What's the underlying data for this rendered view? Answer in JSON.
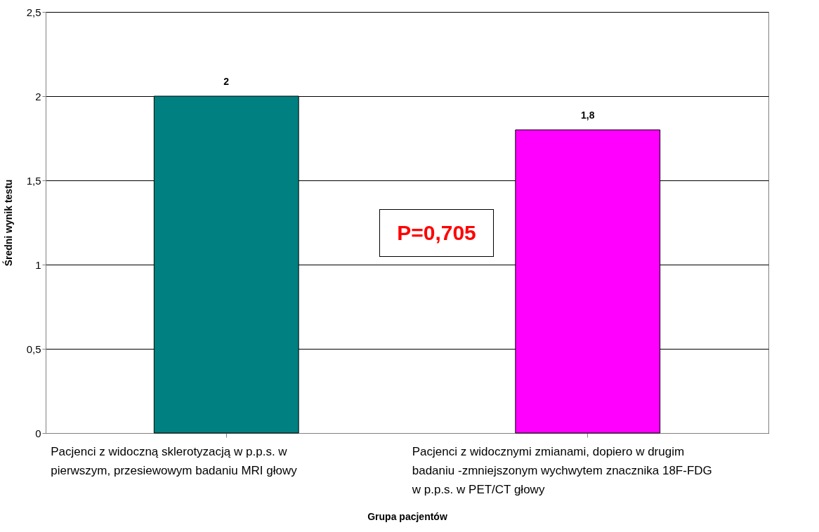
{
  "chart_data": {
    "type": "bar",
    "xlabel": "Grupa pacjentów",
    "ylabel": "Średni wynik testu",
    "categories": [
      "Pacjenci z widoczną sklerotyzacją w p.p.s. w\npierwszym, przesiewowym badaniu MRI głowy",
      "Pacjenci z widocznymi zmianami, dopiero w drugim\nbadaniu -zmniejszonym wychwytem znacznika 18F-FDG\nw p.p.s. w PET/CT głowy"
    ],
    "values": [
      2,
      1.8
    ],
    "colors": [
      "#008080",
      "#ff00ff"
    ],
    "ylim": [
      0,
      2.5
    ],
    "yticks": [
      0,
      {
        "value": 0.5,
        "label": "0,5"
      },
      1,
      {
        "value": 1.5,
        "label": "1,5"
      },
      2,
      {
        "value": 2.5,
        "label": "2,5"
      }
    ],
    "grid": "y",
    "value_labels": [
      "2",
      "1,8"
    ],
    "annotations": [
      "P=0,705"
    ]
  }
}
